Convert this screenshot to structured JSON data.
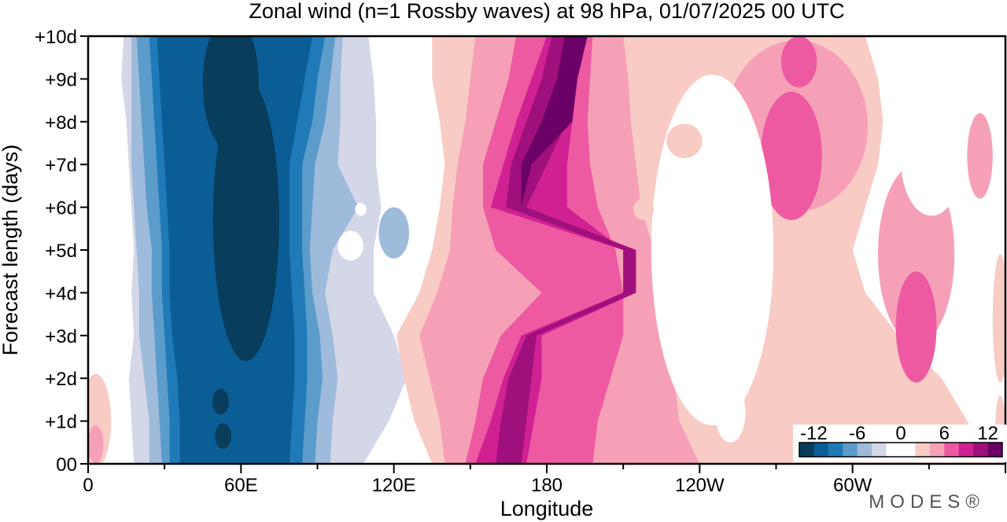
{
  "chart_data": {
    "type": "heatmap",
    "title": "Zonal wind (n=1 Rossby waves) at 98 hPa,  01/07/2025  00 UTC",
    "xlabel": "Longitude",
    "ylabel": "Forecast length (days)",
    "x_ticks": [
      "0",
      "60E",
      "120E",
      "180",
      "120W",
      "60W"
    ],
    "x_tick_values": [
      0,
      60,
      120,
      180,
      240,
      300
    ],
    "x_range": [
      0,
      360
    ],
    "y_ticks": [
      "00",
      "+1d",
      "+2d",
      "+3d",
      "+4d",
      "+5d",
      "+6d",
      "+7d",
      "+8d",
      "+9d",
      "+10d"
    ],
    "y_range": [
      0,
      10
    ],
    "colorbar": {
      "labels": [
        "-12",
        "-6",
        "0",
        "6",
        "12"
      ],
      "label_values": [
        -12,
        -6,
        0,
        6,
        12
      ],
      "levels": [
        -14,
        -12,
        -10,
        -8,
        -6,
        -4,
        -2,
        0,
        2,
        4,
        6,
        8,
        10,
        12,
        14
      ],
      "colors": [
        "#093d5c",
        "#0b5d96",
        "#1f7ab7",
        "#5b9ccb",
        "#9fbbdb",
        "#d4d7e8",
        "#ffffff",
        "#ffffff",
        "#f9cbc5",
        "#f6a0b8",
        "#ed5aa2",
        "#d02193",
        "#a0107d",
        "#6b0066"
      ]
    },
    "day_rows": [
      0,
      1,
      2,
      3,
      4,
      5,
      6,
      7,
      8,
      9,
      10
    ],
    "bands": [
      {
        "level": -2,
        "color": "#d4d7e8",
        "west": [
          18,
          17,
          16,
          18,
          17,
          18,
          17,
          16,
          15,
          13,
          14
        ],
        "east": [
          108,
          118,
          125,
          120,
          112,
          112,
          115,
          113,
          113,
          112,
          110
        ]
      },
      {
        "level": -4,
        "color": "#9fbbdb",
        "west": [
          24,
          24,
          22,
          20,
          20,
          19,
          18,
          17,
          17,
          17,
          17
        ],
        "east": [
          95,
          96,
          98,
          96,
          93,
          96,
          106,
          98,
          99,
          99,
          100
        ]
      },
      {
        "level": -6,
        "color": "#5b9ccb",
        "west": [
          29,
          28,
          27,
          26,
          25,
          25,
          23,
          22,
          21,
          20,
          19
        ],
        "east": [
          89,
          90,
          92,
          91,
          88,
          87,
          88,
          89,
          93,
          95,
          97
        ]
      },
      {
        "level": -8,
        "color": "#1f7ab7",
        "west": [
          32,
          32,
          31,
          30,
          29,
          29,
          28,
          27,
          26,
          25,
          24
        ],
        "east": [
          84,
          85,
          86,
          86,
          85,
          84,
          84,
          84,
          88,
          90,
          93
        ]
      },
      {
        "level": -10,
        "color": "#0b5d96",
        "west": [
          36,
          36,
          35,
          33,
          32,
          32,
          31,
          30,
          29,
          28,
          27
        ],
        "east": [
          79,
          80,
          81,
          81,
          80,
          79,
          79,
          79,
          82,
          85,
          88
        ]
      },
      {
        "level": -12,
        "color": "#093d5c",
        "west": null,
        "east": null
      },
      {
        "level": 2,
        "color": "#f9cbc5",
        "west": [
          135,
          128,
          124,
          121,
          130,
          135,
          138,
          140,
          138,
          135,
          135
        ],
        "east": [
          355,
          345,
          335,
          318,
          305,
          300,
          305,
          310,
          312,
          310,
          305
        ]
      },
      {
        "level": 4,
        "color": "#f6a0b8",
        "west": [
          140,
          138,
          134,
          130,
          137,
          142,
          143,
          145,
          148,
          150,
          152
        ],
        "east": [
          240,
          232,
          230,
          228,
          226,
          222,
          217,
          215,
          213,
          212,
          210
        ]
      },
      {
        "level": 6,
        "color": "#ed5aa2",
        "west": [
          148,
          152,
          155,
          162,
          178,
          160,
          155,
          155,
          160,
          165,
          168
        ],
        "east": [
          198,
          200,
          205,
          210,
          210,
          207,
          200,
          197,
          196,
          197,
          198
        ]
      },
      {
        "level": 8,
        "color": "#d02193",
        "west": [
          152,
          158,
          163,
          170,
          210,
          210,
          158,
          163,
          168,
          174,
          180
        ],
        "east": [
          172,
          175,
          178,
          178,
          215,
          210,
          188,
          188,
          190,
          192,
          195
        ]
      },
      {
        "level": 10,
        "color": "#a0107d",
        "west": [
          160,
          162,
          165,
          172,
          210,
          210,
          164,
          166,
          172,
          178,
          182
        ],
        "east": [
          170,
          172,
          174,
          176,
          215,
          215,
          172,
          180,
          188,
          190,
          194
        ]
      },
      {
        "level": 12,
        "color": "#6b0066",
        "west": [
          170,
          170,
          170,
          170,
          170,
          170,
          170,
          170,
          178,
          184,
          187
        ],
        "east": [
          170,
          170,
          170,
          170,
          170,
          170,
          170,
          174,
          190,
          192,
          196
        ]
      }
    ],
    "blobs": [
      {
        "level": -12,
        "color": "#093d5c",
        "lon": 62,
        "day": 5.7,
        "rlon": 13,
        "rday": 3.3
      },
      {
        "level": -12,
        "color": "#093d5c",
        "lon": 56,
        "day": 8.9,
        "rlon": 11,
        "rday": 1.6
      },
      {
        "level": -12,
        "color": "#093d5c",
        "lon": 52,
        "day": 1.45,
        "rlon": 3.2,
        "rday": 0.3
      },
      {
        "level": -12,
        "color": "#093d5c",
        "lon": 53,
        "day": 0.65,
        "rlon": 3.2,
        "rday": 0.3
      },
      {
        "level": -4,
        "color": "#9fbbdb",
        "lon": 120,
        "day": 5.4,
        "rlon": 6,
        "rday": 0.6
      },
      {
        "level": 0,
        "color": "#ffffff",
        "lon": 103,
        "day": 5.1,
        "rlon": 5,
        "rday": 0.35
      },
      {
        "level": 0,
        "color": "#ffffff",
        "lon": 107,
        "day": 5.95,
        "rlon": 2.2,
        "rday": 0.15
      },
      {
        "level": 0,
        "color": "#ffffff",
        "lon": 245,
        "day": 5.0,
        "rlon": 24,
        "rday": 4.1
      },
      {
        "level": 0,
        "color": "#ffffff",
        "lon": 252,
        "day": 1.2,
        "rlon": 6,
        "rday": 0.7
      },
      {
        "level": 0,
        "color": "#ffffff",
        "lon": 255,
        "day": 3.6,
        "rlon": 4,
        "rday": 0.4
      },
      {
        "level": 0,
        "color": "#ffffff",
        "lon": 331,
        "day": 7.1,
        "rlon": 12,
        "rday": 1.3
      },
      {
        "level": 0,
        "color": "#ffffff",
        "lon": 322,
        "day": 8.1,
        "rlon": 3,
        "rday": 0.3
      },
      {
        "level": 2,
        "color": "#f9cbc5",
        "lon": 3,
        "day": 1.0,
        "rlon": 6,
        "rday": 1.1
      },
      {
        "level": 4,
        "color": "#f6a0b8",
        "lon": 3,
        "day": 0.45,
        "rlon": 3,
        "rday": 0.45
      },
      {
        "level": 2,
        "color": "#f9cbc5",
        "lon": 145,
        "day": 3.35,
        "rlon": 12,
        "rday": 0.8
      },
      {
        "level": 2,
        "color": "#f9cbc5",
        "lon": 185,
        "day": 3.0,
        "rlon": 5,
        "rday": 0.4
      },
      {
        "level": 2,
        "color": "#f9cbc5",
        "lon": 218,
        "day": 5.95,
        "rlon": 4,
        "rday": 0.25
      },
      {
        "level": 2,
        "color": "#f9cbc5",
        "lon": 234,
        "day": 7.55,
        "rlon": 7,
        "rday": 0.4
      },
      {
        "level": 4,
        "color": "#f6a0b8",
        "lon": 278,
        "day": 7.9,
        "rlon": 28,
        "rday": 2.0
      },
      {
        "level": 4,
        "color": "#f6a0b8",
        "lon": 325,
        "day": 4.9,
        "rlon": 15,
        "rday": 2.1
      },
      {
        "level": 4,
        "color": "#f6a0b8",
        "lon": 350,
        "day": 7.2,
        "rlon": 5,
        "rday": 1.0
      },
      {
        "level": 6,
        "color": "#ed5aa2",
        "lon": 276,
        "day": 7.2,
        "rlon": 12,
        "rday": 1.5
      },
      {
        "level": 6,
        "color": "#ed5aa2",
        "lon": 279,
        "day": 9.4,
        "rlon": 7,
        "rday": 0.6
      },
      {
        "level": 6,
        "color": "#ed5aa2",
        "lon": 325,
        "day": 3.2,
        "rlon": 8,
        "rday": 1.3
      },
      {
        "level": 2,
        "color": "#f9cbc5",
        "lon": 358,
        "day": 3.4,
        "rlon": 3,
        "rday": 1.5
      },
      {
        "level": 2,
        "color": "#f9cbc5",
        "lon": 358,
        "day": 0.8,
        "rlon": 2,
        "rday": 0.8
      },
      {
        "level": 4,
        "color": "#f6a0b8",
        "lon": 357,
        "day": 0.4,
        "rlon": 2,
        "rday": 0.4
      }
    ]
  },
  "credit": "MODES®"
}
